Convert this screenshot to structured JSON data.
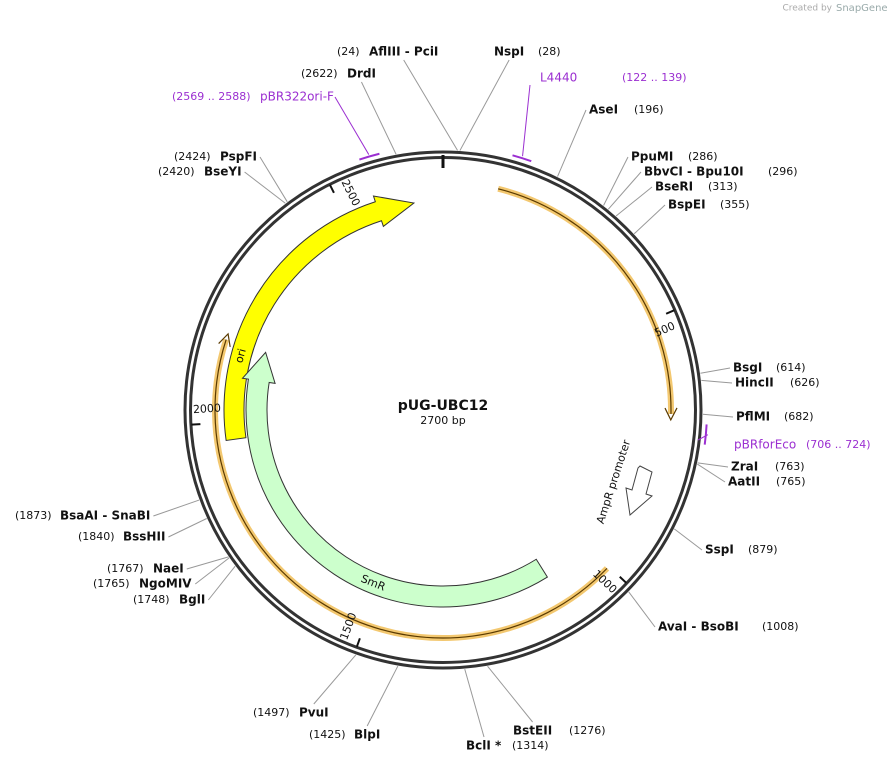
{
  "header": {
    "credit": "Created by",
    "brand": "SnapGene"
  },
  "map": {
    "name": "pUG-UBC12",
    "length": "2700 bp",
    "ticks": [
      500,
      1000,
      1500,
      2000,
      2500
    ],
    "enzymes": [
      {
        "name": "AflIII  -  PciI",
        "site": "(24)"
      },
      {
        "name": "NspI",
        "site": "(28)"
      },
      {
        "name": "DrdI",
        "site": "(2622)"
      },
      {
        "name": "AseI",
        "site": "(196)"
      },
      {
        "name": "PpuMI",
        "site": "(286)"
      },
      {
        "name": "BbvCI  -  Bpu10I",
        "site": "(296)"
      },
      {
        "name": "BseRI",
        "site": "(313)"
      },
      {
        "name": "BspEI",
        "site": "(355)"
      },
      {
        "name": "PspFI",
        "site": "(2424)"
      },
      {
        "name": "BseYI",
        "site": "(2420)"
      },
      {
        "name": "BsgI",
        "site": "(614)"
      },
      {
        "name": "HincII",
        "site": "(626)"
      },
      {
        "name": "PflMI",
        "site": "(682)"
      },
      {
        "name": "ZraI",
        "site": "(763)"
      },
      {
        "name": "AatII",
        "site": "(765)"
      },
      {
        "name": "SspI",
        "site": "(879)"
      },
      {
        "name": "AvaI  -  BsoBI",
        "site": "(1008)"
      },
      {
        "name": "BstEII",
        "site": "(1276)"
      },
      {
        "name": "BclI *",
        "site": "(1314)"
      },
      {
        "name": "BlpI",
        "site": "(1425)"
      },
      {
        "name": "PvuI",
        "site": "(1497)"
      },
      {
        "name": "BglI",
        "site": "(1748)"
      },
      {
        "name": "NgoMIV",
        "site": "(1765)"
      },
      {
        "name": "NaeI",
        "site": "(1767)"
      },
      {
        "name": "BssHII",
        "site": "(1840)"
      },
      {
        "name": "BsaAI  -  SnaBI",
        "site": "(1873)"
      }
    ],
    "primers": [
      {
        "name": "L4440",
        "range": "(122 .. 139)"
      },
      {
        "name": "pBR322ori-F",
        "range": "(2569 .. 2588)"
      },
      {
        "name": "pBRforEco",
        "range": "(706 .. 724)"
      }
    ],
    "features": [
      {
        "label": "ori"
      },
      {
        "label": "SmR"
      },
      {
        "label": "AmpR promoter"
      }
    ]
  }
}
